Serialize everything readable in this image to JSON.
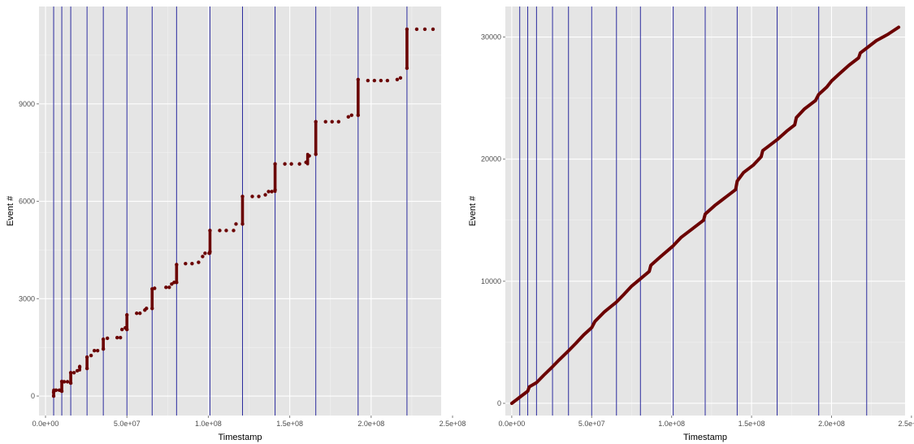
{
  "chart_data": [
    {
      "type": "scatter",
      "xlabel": "Timestamp",
      "ylabel": "Event #",
      "xlim": [
        -4000000,
        243000000
      ],
      "ylim": [
        -600,
        12000
      ],
      "x_ticks": [
        0,
        50000000,
        100000000,
        150000000,
        200000000,
        250000000
      ],
      "x_tick_labels": [
        "0.0e+00",
        "5.0e+07",
        "1.0e+08",
        "1.5e+08",
        "2.0e+08",
        "2.5e+08"
      ],
      "y_ticks": [
        0,
        3000,
        6000,
        9000
      ],
      "y_tick_labels": [
        "0",
        "3000",
        "6000",
        "9000"
      ],
      "grid": true,
      "vlines": [
        5000000,
        10000000,
        15500000,
        25500000,
        35500000,
        50000000,
        65500000,
        80500000,
        101000000,
        121000000,
        141000000,
        166000000,
        192000000,
        222000000
      ],
      "series": [
        {
          "points": [
            [
              5000000,
              0
            ],
            [
              5000000,
              120
            ],
            [
              5200000,
              180
            ],
            [
              6500000,
              180
            ],
            [
              8500000,
              180
            ],
            [
              10000000,
              150
            ],
            [
              10000000,
              450
            ],
            [
              11500000,
              440
            ],
            [
              13500000,
              440
            ],
            [
              15500000,
              400
            ],
            [
              15500000,
              720
            ],
            [
              17500000,
              720
            ],
            [
              19500000,
              780
            ],
            [
              21000000,
              900
            ],
            [
              25500000,
              850
            ],
            [
              25500000,
              1200
            ],
            [
              28000000,
              1250
            ],
            [
              30000000,
              1400
            ],
            [
              32000000,
              1400
            ],
            [
              35500000,
              1450
            ],
            [
              35500000,
              1750
            ],
            [
              38000000,
              1780
            ],
            [
              44000000,
              1800
            ],
            [
              46000000,
              1800
            ],
            [
              47000000,
              2050
            ],
            [
              49000000,
              2100
            ],
            [
              50000000,
              2050
            ],
            [
              50000000,
              2500
            ],
            [
              56000000,
              2550
            ],
            [
              58000000,
              2550
            ],
            [
              61000000,
              2650
            ],
            [
              62000000,
              2700
            ],
            [
              65500000,
              2700
            ],
            [
              65500000,
              3300
            ],
            [
              67000000,
              3320
            ],
            [
              74000000,
              3350
            ],
            [
              76000000,
              3350
            ],
            [
              77500000,
              3450
            ],
            [
              79000000,
              3500
            ],
            [
              80500000,
              3500
            ],
            [
              80500000,
              4050
            ],
            [
              86000000,
              4080
            ],
            [
              90000000,
              4080
            ],
            [
              94000000,
              4120
            ],
            [
              96500000,
              4300
            ],
            [
              98000000,
              4400
            ],
            [
              100500000,
              4400
            ],
            [
              101000000,
              4450
            ],
            [
              101000000,
              5100
            ],
            [
              107000000,
              5100
            ],
            [
              111000000,
              5100
            ],
            [
              115500000,
              5100
            ],
            [
              117000000,
              5300
            ],
            [
              121000000,
              5300
            ],
            [
              121000000,
              6150
            ],
            [
              127000000,
              6150
            ],
            [
              131000000,
              6150
            ],
            [
              135000000,
              6200
            ],
            [
              137000000,
              6300
            ],
            [
              139000000,
              6300
            ],
            [
              141000000,
              6350
            ],
            [
              141000000,
              7150
            ],
            [
              147000000,
              7150
            ],
            [
              151000000,
              7150
            ],
            [
              156000000,
              7150
            ],
            [
              160000000,
              7200
            ],
            [
              162000000,
              7400
            ],
            [
              166000000,
              7450
            ],
            [
              166000000,
              8450
            ],
            [
              172000000,
              8450
            ],
            [
              176000000,
              8450
            ],
            [
              180000000,
              8450
            ],
            [
              186000000,
              8600
            ],
            [
              188000000,
              8650
            ],
            [
              192000000,
              8650
            ],
            [
              192000000,
              9750
            ],
            [
              198000000,
              9720
            ],
            [
              202000000,
              9720
            ],
            [
              206000000,
              9720
            ],
            [
              210000000,
              9720
            ],
            [
              216000000,
              9750
            ],
            [
              218000000,
              9800
            ],
            [
              222000000,
              10100
            ],
            [
              222000000,
              11300
            ],
            [
              228000000,
              11300
            ],
            [
              233000000,
              11300
            ],
            [
              238000000,
              11300
            ]
          ],
          "vertical_runs": [
            [
              5000000,
              0,
              180
            ],
            [
              10000000,
              150,
              450
            ],
            [
              15500000,
              400,
              720
            ],
            [
              21000000,
              800,
              920
            ],
            [
              25500000,
              850,
              1200
            ],
            [
              35500000,
              1450,
              1750
            ],
            [
              50000000,
              2050,
              2500
            ],
            [
              65500000,
              2700,
              3300
            ],
            [
              80500000,
              3500,
              4050
            ],
            [
              101000000,
              4400,
              5100
            ],
            [
              121000000,
              5300,
              6150
            ],
            [
              141000000,
              6300,
              7150
            ],
            [
              161000000,
              7150,
              7450
            ],
            [
              166000000,
              7450,
              8450
            ],
            [
              192000000,
              8650,
              9750
            ],
            [
              222000000,
              10100,
              11300
            ]
          ]
        }
      ]
    },
    {
      "type": "line",
      "xlabel": "Timestamp",
      "ylabel": "Event #",
      "xlim": [
        -4000000,
        246000000
      ],
      "ylim": [
        -1000,
        32500
      ],
      "x_ticks": [
        0,
        50000000,
        100000000,
        150000000,
        200000000,
        250000000
      ],
      "x_tick_labels": [
        "0.0e+00",
        "5.0e+07",
        "1.0e+08",
        "1.5e+08",
        "2.0e+08",
        "2.5e+08"
      ],
      "y_ticks": [
        0,
        10000,
        20000,
        30000
      ],
      "y_tick_labels": [
        "0",
        "10000",
        "20000",
        "30000"
      ],
      "grid": true,
      "vlines": [
        5000000,
        10000000,
        15500000,
        25500000,
        35500000,
        50000000,
        65500000,
        80500000,
        101000000,
        121000000,
        141000000,
        166000000,
        192000000,
        222000000
      ],
      "series": [
        {
          "points": [
            [
              0,
              0
            ],
            [
              5000000,
              500
            ],
            [
              10000000,
              1000
            ],
            [
              11000000,
              1350
            ],
            [
              15500000,
              1700
            ],
            [
              20000000,
              2300
            ],
            [
              25500000,
              3000
            ],
            [
              30000000,
              3600
            ],
            [
              35500000,
              4300
            ],
            [
              40000000,
              4900
            ],
            [
              45000000,
              5600
            ],
            [
              50000000,
              6200
            ],
            [
              52000000,
              6700
            ],
            [
              58000000,
              7500
            ],
            [
              65500000,
              8300
            ],
            [
              70000000,
              8900
            ],
            [
              75000000,
              9600
            ],
            [
              80500000,
              10200
            ],
            [
              86000000,
              10800
            ],
            [
              87000000,
              11300
            ],
            [
              93000000,
              12000
            ],
            [
              101000000,
              12900
            ],
            [
              106000000,
              13600
            ],
            [
              113000000,
              14300
            ],
            [
              120000000,
              15000
            ],
            [
              121000000,
              15500
            ],
            [
              127000000,
              16200
            ],
            [
              134000000,
              16900
            ],
            [
              140000000,
              17500
            ],
            [
              141000000,
              18200
            ],
            [
              145000000,
              18900
            ],
            [
              151000000,
              19500
            ],
            [
              156000000,
              20200
            ],
            [
              157000000,
              20700
            ],
            [
              160000000,
              21000
            ],
            [
              166000000,
              21600
            ],
            [
              172000000,
              22300
            ],
            [
              177000000,
              22800
            ],
            [
              178000000,
              23400
            ],
            [
              183000000,
              24100
            ],
            [
              190000000,
              24800
            ],
            [
              192000000,
              25300
            ],
            [
              197000000,
              25900
            ],
            [
              200000000,
              26400
            ],
            [
              205000000,
              27000
            ],
            [
              211000000,
              27700
            ],
            [
              217000000,
              28300
            ],
            [
              218000000,
              28700
            ],
            [
              222000000,
              29100
            ],
            [
              228000000,
              29700
            ],
            [
              235000000,
              30200
            ],
            [
              242000000,
              30800
            ]
          ]
        }
      ]
    }
  ],
  "colors": {
    "panel_bg": "#e5e5e5",
    "grid_major": "#ffffff",
    "vline": "#2b2b9e",
    "series": "#6b0000"
  }
}
